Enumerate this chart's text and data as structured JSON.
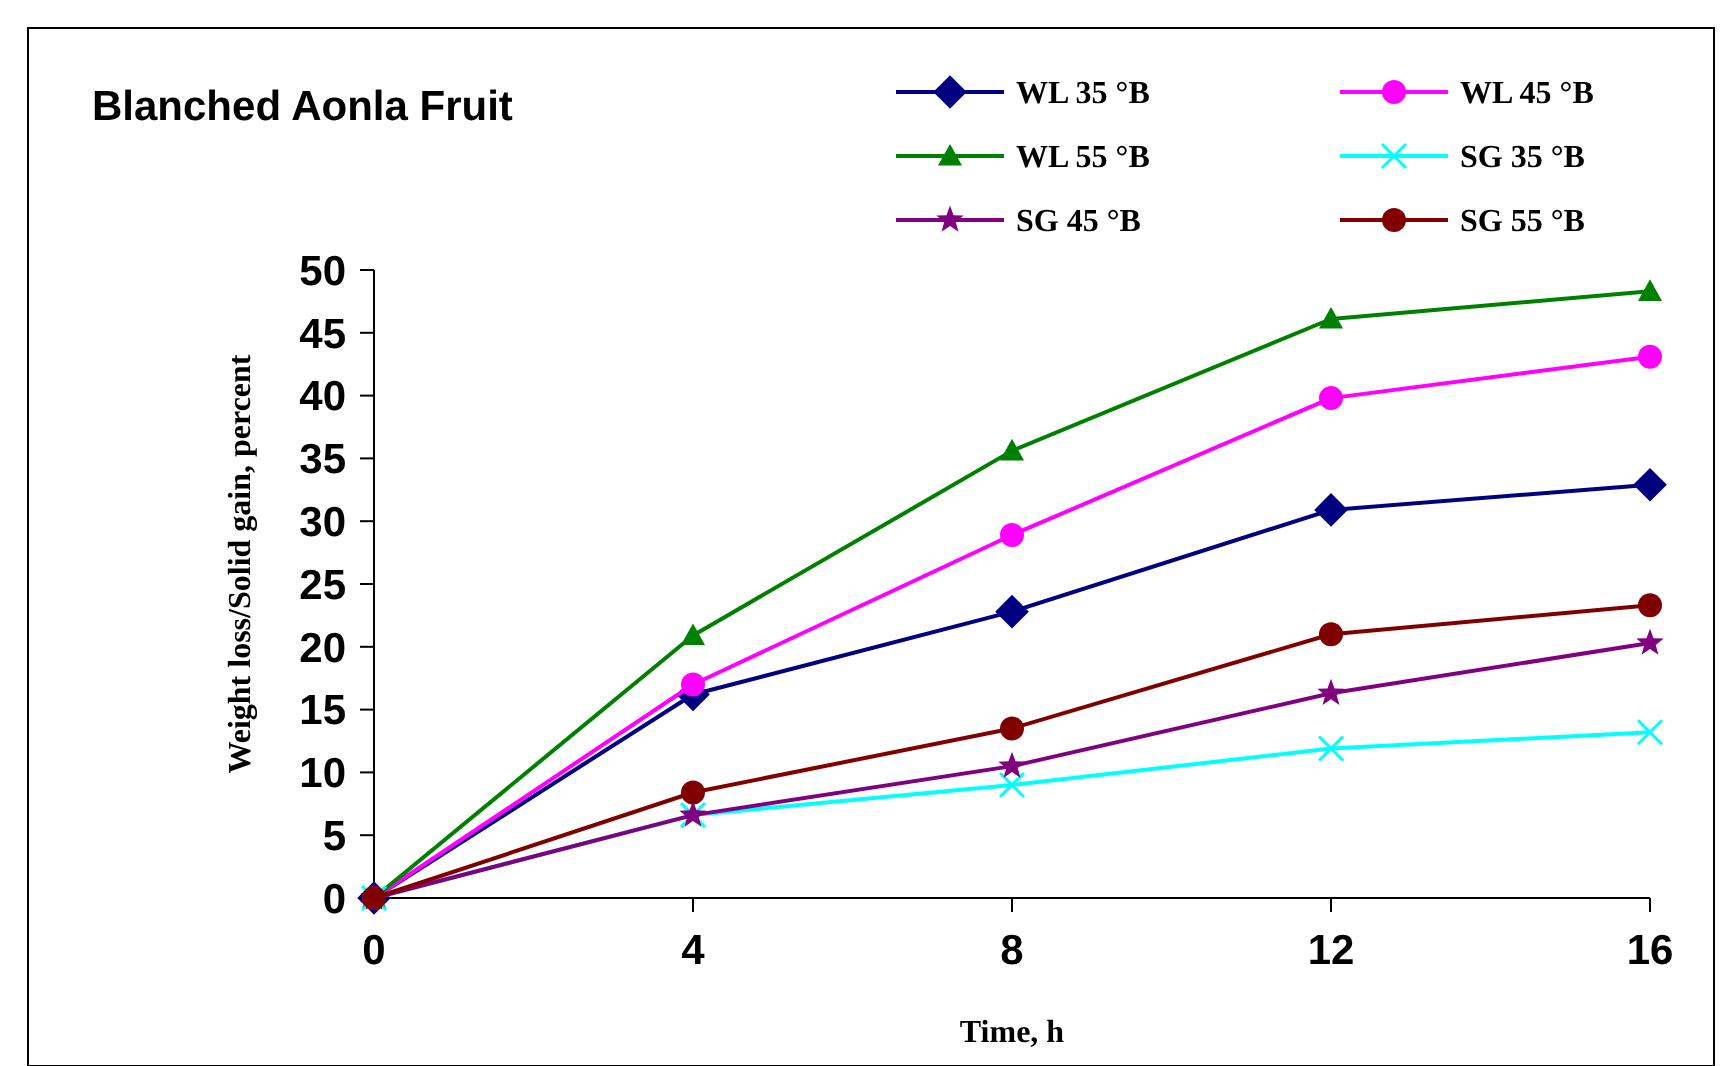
{
  "chart_data": {
    "type": "line",
    "title": "Blanched Aonla Fruit",
    "xlabel": "Time, h",
    "ylabel": "Weight loss/Solid gain, percent",
    "x": [
      0,
      4,
      8,
      12,
      16
    ],
    "xlim": [
      0,
      16
    ],
    "xticks": [
      0,
      4,
      8,
      12,
      16
    ],
    "ylim": [
      0,
      50
    ],
    "yticks": [
      0,
      5,
      10,
      15,
      20,
      25,
      30,
      35,
      40,
      45,
      50
    ],
    "grid": false,
    "legend": "top right",
    "series": [
      {
        "name": "WL 35 °B",
        "color": "#000080",
        "marker": "diamond",
        "values": [
          0,
          16.2,
          22.8,
          30.9,
          32.9
        ]
      },
      {
        "name": "WL 45 °B",
        "color": "#ff00ff",
        "marker": "circle",
        "values": [
          0,
          17.0,
          28.9,
          39.8,
          43.1
        ]
      },
      {
        "name": "WL 55 °B",
        "color": "#008000",
        "marker": "triangle",
        "values": [
          0,
          20.9,
          35.6,
          46.1,
          48.3
        ]
      },
      {
        "name": "SG 35 °B",
        "color": "#00ffff",
        "marker": "cross",
        "values": [
          0,
          6.6,
          9.0,
          11.9,
          13.2
        ]
      },
      {
        "name": "SG 45 °B",
        "color": "#800080",
        "marker": "star",
        "values": [
          0,
          6.6,
          10.5,
          16.3,
          20.3
        ]
      },
      {
        "name": "SG 55 °B",
        "color": "#800000",
        "marker": "circle",
        "values": [
          0,
          8.4,
          13.5,
          21.0,
          23.3
        ]
      }
    ]
  }
}
